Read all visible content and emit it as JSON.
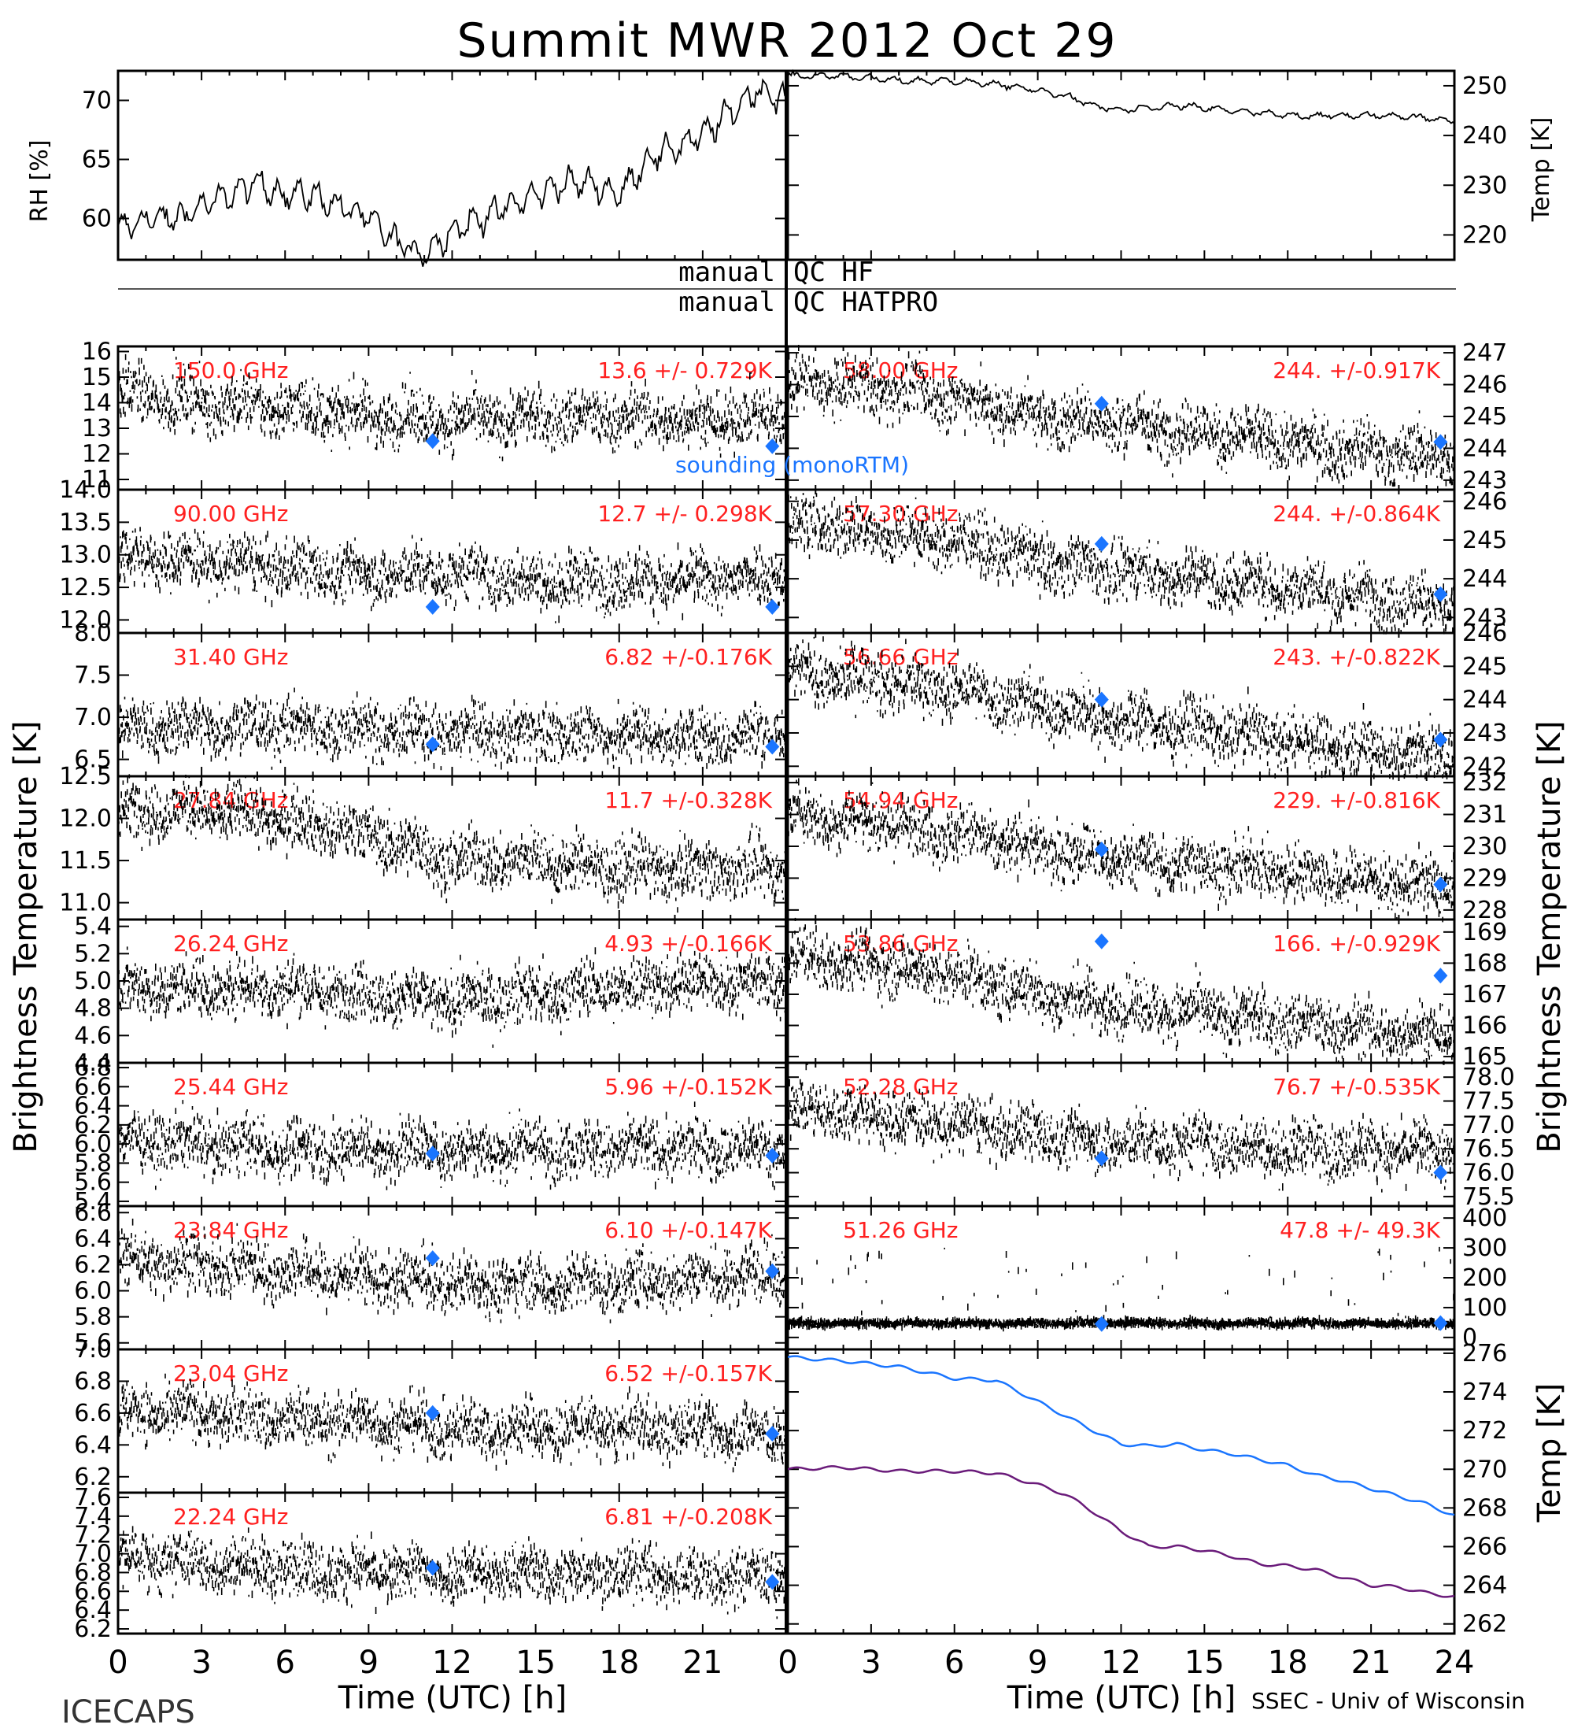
{
  "title": "Summit MWR 2012 Oct 29",
  "labels": {
    "left_ylabel": "Brightness Temperature [K]",
    "right_ylabel": "Brightness Temperature [K]",
    "rh_label": "RH [%]",
    "temp_label": "Temp [K]",
    "bb_temp_label": "Temp [K]",
    "xlabel": "Time (UTC) [h]",
    "qc_left_1": "manual",
    "qc_right_1": "QC HF",
    "qc_left_2": "manual",
    "qc_right_2": "QC HATPRO",
    "footer_left": "ICECAPS",
    "footer_right": "SSEC - Univ of Wisconsin",
    "sounding_label": "sounding (monoRTM)"
  },
  "colors": {
    "annotation": "#ff2020",
    "sounding": "#1a75ff",
    "bb_hatpro": "#1a75ff",
    "bb_hf": "#6a1b7a",
    "data": "#000000"
  },
  "chart_data": [
    {
      "type": "line",
      "id": "rh",
      "ylabel": "RH [%]",
      "xlim": [
        0,
        24
      ],
      "ylim": [
        56.5,
        72.5
      ],
      "yticks": [
        60,
        65,
        70
      ],
      "ytick_labels": [
        "60",
        "65",
        "70"
      ],
      "x": [
        0,
        1,
        2,
        3,
        4,
        5,
        6,
        7,
        8,
        9,
        10,
        11,
        12,
        13,
        14,
        15,
        16,
        17,
        18,
        19,
        20,
        21,
        22,
        23,
        24
      ],
      "values": [
        59,
        60,
        60,
        61,
        62,
        63,
        62,
        62,
        61,
        60,
        58,
        57,
        59,
        60,
        61,
        62,
        63,
        63,
        62,
        65,
        66,
        67,
        69,
        71,
        70
      ]
    },
    {
      "type": "line",
      "id": "temp",
      "ylabel": "Temp [K]",
      "xlim": [
        0,
        24
      ],
      "ylim": [
        215,
        253
      ],
      "yticks": [
        220,
        230,
        240,
        250
      ],
      "ytick_labels": [
        "220",
        "230",
        "240",
        "250"
      ],
      "x": [
        0,
        2,
        4,
        6,
        8,
        10,
        11,
        12,
        14,
        16,
        18,
        20,
        22,
        24
      ],
      "values": [
        252,
        252,
        251,
        251,
        250,
        248,
        246,
        245,
        246,
        245,
        244,
        244,
        244,
        243
      ]
    },
    {
      "type": "scatter",
      "id": "ch150",
      "label": "150.0 GHz",
      "stat": "13.6 +/- 0.729K",
      "xlim": [
        0,
        24
      ],
      "ylim": [
        10.6,
        16.2
      ],
      "yticks": [
        11,
        12,
        13,
        14,
        15,
        16
      ],
      "ytick_labels": [
        "11",
        "12",
        "13",
        "14",
        "15",
        "16"
      ],
      "x": [
        0,
        3,
        6,
        9,
        12,
        15,
        18,
        21,
        24
      ],
      "values": [
        14.4,
        14.0,
        13.8,
        13.5,
        13.3,
        13.4,
        13.4,
        13.3,
        13.5
      ],
      "sounding": [
        [
          11.3,
          12.5
        ],
        [
          23.5,
          12.3
        ]
      ]
    },
    {
      "type": "scatter",
      "id": "ch90",
      "label": "90.00 GHz",
      "stat": "12.7 +/- 0.298K",
      "xlim": [
        0,
        24
      ],
      "ylim": [
        11.8,
        14.0
      ],
      "yticks": [
        12.0,
        12.5,
        13.0,
        13.5,
        14.0
      ],
      "ytick_labels": [
        "12.0",
        "12.5",
        "13.0",
        "13.5",
        "14.0"
      ],
      "x": [
        0,
        3,
        6,
        9,
        12,
        15,
        18,
        21,
        24
      ],
      "values": [
        13.0,
        12.9,
        12.8,
        12.7,
        12.7,
        12.6,
        12.6,
        12.6,
        12.7
      ],
      "sounding": [
        [
          11.3,
          12.2
        ],
        [
          23.5,
          12.2
        ]
      ]
    },
    {
      "type": "scatter",
      "id": "ch3140",
      "label": "31.40 GHz",
      "stat": "6.82 +/-0.176K",
      "xlim": [
        0,
        24
      ],
      "ylim": [
        6.3,
        8.0
      ],
      "yticks": [
        6.5,
        7.0,
        7.5,
        8.0
      ],
      "ytick_labels": [
        "6.5",
        "7.0",
        "7.5",
        "8.0"
      ],
      "x": [
        0,
        3,
        6,
        9,
        12,
        15,
        18,
        21,
        24
      ],
      "values": [
        6.85,
        6.9,
        6.9,
        6.85,
        6.8,
        6.8,
        6.8,
        6.75,
        6.8
      ],
      "sounding": [
        [
          11.3,
          6.68
        ],
        [
          23.5,
          6.65
        ]
      ]
    },
    {
      "type": "scatter",
      "id": "ch2784",
      "label": "27.84 GHz",
      "stat": "11.7 +/-0.328K",
      "xlim": [
        0,
        24
      ],
      "ylim": [
        10.8,
        12.5
      ],
      "yticks": [
        11.0,
        11.5,
        12.0,
        12.5
      ],
      "ytick_labels": [
        "11.0",
        "11.5",
        "12.0",
        "12.5"
      ],
      "x": [
        0,
        3,
        6,
        9,
        12,
        15,
        18,
        21,
        24
      ],
      "values": [
        12.1,
        12.1,
        12.0,
        11.8,
        11.5,
        11.5,
        11.4,
        11.4,
        11.4
      ],
      "sounding": []
    },
    {
      "type": "scatter",
      "id": "ch2624",
      "label": "26.24 GHz",
      "stat": "4.93 +/-0.166K",
      "xlim": [
        0,
        24
      ],
      "ylim": [
        4.4,
        5.45
      ],
      "yticks": [
        4.4,
        4.6,
        4.8,
        5.0,
        5.2,
        5.4
      ],
      "ytick_labels": [
        "4.4",
        "4.6",
        "4.8",
        "5.0",
        "5.2",
        "5.4"
      ],
      "x": [
        0,
        3,
        6,
        9,
        12,
        15,
        18,
        21,
        24
      ],
      "values": [
        4.95,
        4.95,
        4.95,
        4.9,
        4.85,
        4.9,
        4.95,
        5.0,
        5.0
      ],
      "sounding": []
    },
    {
      "type": "scatter",
      "id": "ch2544",
      "label": "25.44 GHz",
      "stat": "5.96 +/-0.152K",
      "xlim": [
        0,
        24
      ],
      "ylim": [
        5.35,
        6.85
      ],
      "yticks": [
        5.4,
        5.6,
        5.8,
        6.0,
        6.2,
        6.4,
        6.6,
        6.8
      ],
      "ytick_labels": [
        "5.4",
        "5.6",
        "5.8",
        "6.0",
        "6.2",
        "6.4",
        "6.6",
        "6.8"
      ],
      "x": [
        0,
        3,
        6,
        9,
        12,
        15,
        18,
        21,
        24
      ],
      "values": [
        6.05,
        6.0,
        5.95,
        5.95,
        5.95,
        5.95,
        5.95,
        5.95,
        5.95
      ],
      "sounding": [
        [
          11.3,
          5.9
        ],
        [
          23.5,
          5.88
        ]
      ]
    },
    {
      "type": "scatter",
      "id": "ch2384",
      "label": "23.84 GHz",
      "stat": "6.10 +/-0.147K",
      "xlim": [
        0,
        24
      ],
      "ylim": [
        5.55,
        6.65
      ],
      "yticks": [
        5.6,
        5.8,
        6.0,
        6.2,
        6.4,
        6.6
      ],
      "ytick_labels": [
        "5.6",
        "5.8",
        "6.0",
        "6.2",
        "6.4",
        "6.6"
      ],
      "x": [
        0,
        3,
        6,
        9,
        12,
        15,
        18,
        21,
        24
      ],
      "values": [
        6.25,
        6.2,
        6.15,
        6.1,
        6.05,
        6.05,
        6.05,
        6.1,
        6.15
      ],
      "sounding": [
        [
          11.3,
          6.25
        ],
        [
          23.5,
          6.15
        ]
      ]
    },
    {
      "type": "scatter",
      "id": "ch2304",
      "label": "23.04 GHz",
      "stat": "6.52 +/-0.157K",
      "xlim": [
        0,
        24
      ],
      "ylim": [
        6.1,
        7.0
      ],
      "yticks": [
        6.2,
        6.4,
        6.6,
        6.8,
        7.0
      ],
      "ytick_labels": [
        "6.2",
        "6.4",
        "6.6",
        "6.8",
        "7.0"
      ],
      "x": [
        0,
        3,
        6,
        9,
        12,
        15,
        18,
        21,
        24
      ],
      "values": [
        6.6,
        6.6,
        6.55,
        6.55,
        6.5,
        6.5,
        6.5,
        6.5,
        6.45
      ],
      "sounding": [
        [
          11.3,
          6.6
        ],
        [
          23.5,
          6.47
        ]
      ]
    },
    {
      "type": "scatter",
      "id": "ch2224",
      "label": "22.24 GHz",
      "stat": "6.81 +/-0.208K",
      "xlim": [
        0,
        24
      ],
      "ylim": [
        6.15,
        7.65
      ],
      "yticks": [
        6.2,
        6.4,
        6.6,
        6.8,
        7.0,
        7.2,
        7.4,
        7.6
      ],
      "ytick_labels": [
        "6.2",
        "6.4",
        "6.6",
        "6.8",
        "7.0",
        "7.2",
        "7.4",
        "7.6"
      ],
      "x": [
        0,
        3,
        6,
        9,
        12,
        15,
        18,
        21,
        24
      ],
      "values": [
        6.95,
        6.9,
        6.85,
        6.8,
        6.8,
        6.8,
        6.8,
        6.75,
        6.75
      ],
      "sounding": [
        [
          11.3,
          6.85
        ],
        [
          23.5,
          6.7
        ]
      ]
    },
    {
      "type": "scatter",
      "id": "ch5800",
      "label": "58.00 GHz",
      "stat": "244. +/-0.917K",
      "xlim": [
        0,
        24
      ],
      "ylim": [
        242.7,
        247.2
      ],
      "yticks": [
        243,
        244,
        245,
        246,
        247
      ],
      "ytick_labels": [
        "243",
        "244",
        "245",
        "246",
        "247"
      ],
      "x": [
        0,
        3,
        6,
        9,
        12,
        15,
        18,
        21,
        24
      ],
      "values": [
        246.0,
        245.9,
        245.6,
        245.0,
        244.8,
        244.5,
        244.2,
        243.9,
        243.7
      ],
      "sounding": [
        [
          11.3,
          245.4
        ],
        [
          23.5,
          244.2
        ]
      ]
    },
    {
      "type": "scatter",
      "id": "ch5730",
      "label": "57.30 GHz",
      "stat": "244. +/-0.864K",
      "xlim": [
        0,
        24
      ],
      "ylim": [
        242.6,
        246.3
      ],
      "yticks": [
        243,
        244,
        245,
        246
      ],
      "ytick_labels": [
        "243",
        "244",
        "245",
        "246"
      ],
      "x": [
        0,
        3,
        6,
        9,
        12,
        15,
        18,
        21,
        24
      ],
      "values": [
        245.5,
        245.2,
        245.0,
        244.5,
        244.2,
        244.0,
        243.8,
        243.5,
        243.3
      ],
      "sounding": [
        [
          11.3,
          244.9
        ],
        [
          23.5,
          243.6
        ]
      ]
    },
    {
      "type": "scatter",
      "id": "ch5666",
      "label": "56.66 GHz",
      "stat": "243. +/-0.822K",
      "xlim": [
        0,
        24
      ],
      "ylim": [
        241.7,
        246.0
      ],
      "yticks": [
        242,
        243,
        244,
        245,
        246
      ],
      "ytick_labels": [
        "242",
        "243",
        "244",
        "245",
        "246"
      ],
      "x": [
        0,
        3,
        6,
        9,
        12,
        15,
        18,
        21,
        24
      ],
      "values": [
        244.8,
        244.6,
        244.3,
        243.8,
        243.4,
        243.1,
        242.8,
        242.5,
        242.4
      ],
      "sounding": [
        [
          11.3,
          244.0
        ],
        [
          23.5,
          242.8
        ]
      ]
    },
    {
      "type": "scatter",
      "id": "ch5494",
      "label": "54.94 GHz",
      "stat": "229. +/-0.816K",
      "xlim": [
        0,
        24
      ],
      "ylim": [
        227.7,
        232.2
      ],
      "yticks": [
        228,
        229,
        230,
        231,
        232
      ],
      "ytick_labels": [
        "228",
        "229",
        "230",
        "231",
        "232"
      ],
      "x": [
        0,
        3,
        6,
        9,
        12,
        15,
        18,
        21,
        24
      ],
      "values": [
        231.0,
        230.8,
        230.4,
        229.9,
        229.6,
        229.4,
        229.2,
        228.9,
        228.7
      ],
      "sounding": [
        [
          11.3,
          229.9
        ],
        [
          23.5,
          228.8
        ]
      ]
    },
    {
      "type": "scatter",
      "id": "ch5386",
      "label": "53.86 GHz",
      "stat": "166. +/-0.929K",
      "xlim": [
        0,
        24
      ],
      "ylim": [
        164.8,
        169.4
      ],
      "yticks": [
        165,
        166,
        167,
        168,
        169
      ],
      "ytick_labels": [
        "165",
        "166",
        "167",
        "168",
        "169"
      ],
      "x": [
        0,
        3,
        6,
        9,
        12,
        15,
        18,
        21,
        24
      ],
      "values": [
        168.2,
        168.0,
        167.6,
        167.0,
        166.6,
        166.4,
        166.1,
        165.8,
        165.7
      ],
      "sounding": [
        [
          11.3,
          168.7
        ],
        [
          23.5,
          167.6
        ]
      ]
    },
    {
      "type": "scatter",
      "id": "ch5228",
      "label": "52.28 GHz",
      "stat": "76.7 +/-0.535K",
      "xlim": [
        0,
        24
      ],
      "ylim": [
        75.3,
        78.3
      ],
      "yticks": [
        75.5,
        76.0,
        76.5,
        77.0,
        77.5,
        78.0
      ],
      "ytick_labels": [
        "75.5",
        "76.0",
        "76.5",
        "77.0",
        "77.5",
        "78.0"
      ],
      "x": [
        0,
        3,
        6,
        9,
        12,
        15,
        18,
        21,
        24
      ],
      "values": [
        77.4,
        77.2,
        77.0,
        76.8,
        76.6,
        76.6,
        76.5,
        76.5,
        76.4
      ],
      "sounding": [
        [
          11.3,
          76.3
        ],
        [
          23.5,
          76.0
        ]
      ]
    },
    {
      "type": "scatter",
      "id": "ch5126",
      "label": "51.26 GHz",
      "stat": "47.8 +/- 49.3K",
      "xlim": [
        0,
        24
      ],
      "ylim": [
        -40,
        440
      ],
      "yticks": [
        0,
        100,
        200,
        300,
        400
      ],
      "ytick_labels": [
        "0",
        "100",
        "200",
        "300",
        "400"
      ],
      "x": [
        0,
        3,
        6,
        9,
        12,
        15,
        18,
        21,
        24
      ],
      "values": [
        47,
        48,
        47,
        48,
        48,
        47,
        48,
        47,
        48
      ],
      "sounding": [
        [
          11.3,
          45
        ],
        [
          23.5,
          48
        ]
      ]
    },
    {
      "type": "line",
      "id": "blackbody",
      "ylabel": "Temp [K]",
      "xlim": [
        0,
        24
      ],
      "ylim": [
        261.5,
        276.2
      ],
      "yticks": [
        262,
        264,
        266,
        268,
        270,
        272,
        274,
        276
      ],
      "ytick_labels": [
        "262",
        "264",
        "266",
        "268",
        "270",
        "272",
        "274",
        "276"
      ],
      "series": [
        {
          "name": "Blackbody HATPRO",
          "x": [
            0,
            2,
            4,
            6,
            7.5,
            9,
            11,
            12,
            13,
            14,
            15,
            16,
            17,
            18,
            19,
            20,
            21,
            22,
            23,
            24
          ],
          "values": [
            275.8,
            275.6,
            275.3,
            274.7,
            274.6,
            273.5,
            272.0,
            271.3,
            271.2,
            271.3,
            271.0,
            270.8,
            270.5,
            270.2,
            269.7,
            269.4,
            269.0,
            268.6,
            268.2,
            267.6
          ]
        },
        {
          "name": "Blackbody HF",
          "x": [
            0,
            2,
            4,
            6,
            7.5,
            9,
            10,
            11,
            12,
            13,
            14,
            15,
            16,
            17,
            18,
            19,
            20,
            21,
            22,
            23,
            24
          ],
          "values": [
            270.0,
            270.1,
            269.9,
            269.9,
            269.8,
            269.2,
            268.7,
            267.8,
            266.8,
            266.0,
            266.0,
            265.8,
            265.5,
            265.1,
            265.0,
            264.8,
            264.4,
            264.0,
            263.9,
            263.6,
            263.4
          ]
        }
      ]
    }
  ],
  "xticks": [
    0,
    3,
    6,
    9,
    12,
    15,
    18,
    21,
    24
  ],
  "xtick_labels_left": [
    "0",
    "3",
    "6",
    "9",
    "12",
    "15",
    "18",
    "21",
    ""
  ],
  "xtick_labels_right": [
    "0",
    "3",
    "6",
    "9",
    "12",
    "15",
    "18",
    "21",
    "24"
  ]
}
